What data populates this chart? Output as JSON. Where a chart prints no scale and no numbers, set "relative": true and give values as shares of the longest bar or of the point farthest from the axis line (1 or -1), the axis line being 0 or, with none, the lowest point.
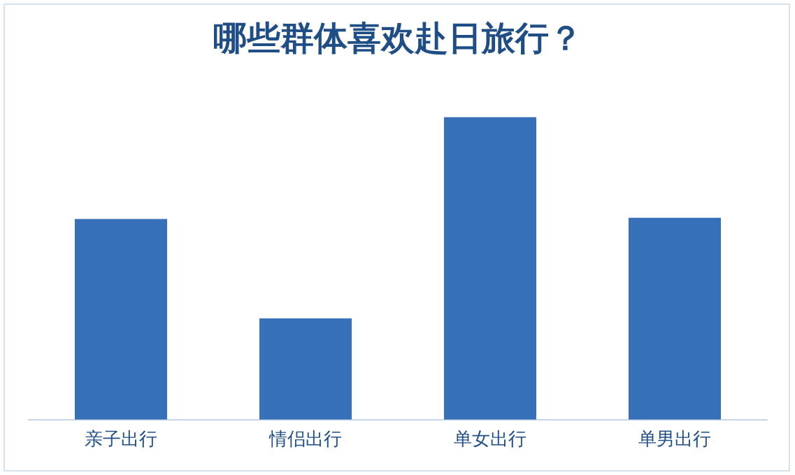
{
  "chart_data": {
    "type": "bar",
    "title": "哪些群体喜欢赴日旅行？",
    "relative": true,
    "categories": [
      "亲子出行",
      "情侣出行",
      "单女出行",
      "单男出行"
    ],
    "values": [
      0.663,
      0.335,
      1,
      0.667
    ],
    "color": "#3570b8",
    "grid": false,
    "legend": false
  }
}
